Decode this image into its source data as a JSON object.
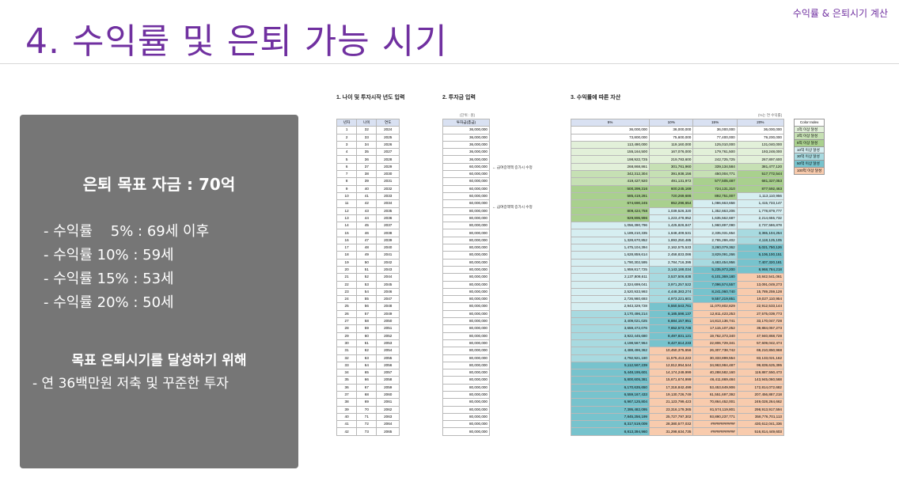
{
  "corner_label": "수익률 & 은퇴시기 계산",
  "title": "4. 수익률 및 은퇴 가능 시기",
  "card": {
    "goal": "은퇴 목표 자금 : 70억",
    "rates": [
      "- 수익률    5% : 69세 이후",
      "- 수익률 10% : 59세",
      "- 수익률 15% : 53세",
      "- 수익률 20% : 50세"
    ],
    "strategy_title": "목표 은퇴시기를 달성하기 위해",
    "strategy_detail": "- 연 36백만원 저축 및 꾸준한 투자"
  },
  "sheet": {
    "section1": "1. 나이 및 투자시작 년도 입력",
    "section2": "2. 투자금 입력",
    "section3": "3. 수익률에 따른 자산",
    "unit_label": "(단위 : 원)",
    "rate_label": "(%는 연 수익률)",
    "headers1": [
      "년차",
      "나이",
      "연도"
    ],
    "header2": "투자금(총금)",
    "headers3": [
      "5%",
      "10%",
      "15%",
      "20%"
    ],
    "note1": "← 급여증액액 증가시 수정",
    "note2": "← 급여증액액 증가시 수정",
    "rows": [
      [
        "1",
        "32",
        "2024",
        "36,000,000",
        "36,000,000",
        "36,000,000",
        "36,000,000",
        "36,000,000"
      ],
      [
        "2",
        "33",
        "2025",
        "36,000,000",
        "73,800,000",
        "75,600,000",
        "77,400,000",
        "79,200,000"
      ],
      [
        "3",
        "34",
        "2026",
        "36,000,000",
        "113,490,000",
        "119,160,000",
        "125,010,000",
        "131,040,000"
      ],
      [
        "4",
        "35",
        "2027",
        "36,000,000",
        "155,164,500",
        "167,076,000",
        "179,761,500",
        "193,248,000"
      ],
      [
        "5",
        "36",
        "2028",
        "36,000,000",
        "198,922,725",
        "219,783,600",
        "242,725,725",
        "267,897,600"
      ],
      [
        "6",
        "37",
        "2029",
        "60,000,000",
        "268,868,861",
        "301,761,960",
        "339,134,584",
        "381,477,120"
      ],
      [
        "7",
        "38",
        "2030",
        "60,000,000",
        "342,312,304",
        "391,938,156",
        "450,004,771",
        "517,772,544"
      ],
      [
        "8",
        "39",
        "2031",
        "60,000,000",
        "419,427,920",
        "491,131,972",
        "577,505,487",
        "681,327,053"
      ],
      [
        "9",
        "40",
        "2032",
        "60,000,000",
        "500,399,316",
        "600,245,169",
        "724,131,310",
        "877,592,463"
      ],
      [
        "10",
        "41",
        "2033",
        "60,000,000",
        "585,419,281",
        "720,269,686",
        "892,751,007",
        "1,113,110,956"
      ],
      [
        "11",
        "42",
        "2034",
        "60,000,000",
        "674,690,245",
        "852,296,654",
        "1,086,663,658",
        "1,415,733,147"
      ],
      [
        "12",
        "43",
        "2035",
        "80,000,000",
        "809,424,758",
        "1,039,526,320",
        "1,352,663,206",
        "1,778,879,777"
      ],
      [
        "13",
        "44",
        "2036",
        "80,000,000",
        "929,895,996",
        "1,223,478,952",
        "1,635,562,687",
        "2,214,655,732"
      ],
      [
        "14",
        "45",
        "2037",
        "80,000,000",
        "1,056,390,796",
        "1,425,826,847",
        "1,960,897,090",
        "2,737,586,878"
      ],
      [
        "15",
        "46",
        "2038",
        "80,000,000",
        "1,189,210,335",
        "1,648,409,531",
        "2,335,031,654",
        "3,365,104,254"
      ],
      [
        "16",
        "47",
        "2039",
        "80,000,000",
        "1,328,670,852",
        "1,893,250,485",
        "2,765,286,402",
        "4,118,125,105"
      ],
      [
        "17",
        "48",
        "2040",
        "80,000,000",
        "1,475,104,394",
        "2,162,575,533",
        "3,260,079,362",
        "5,021,750,126"
      ],
      [
        "18",
        "49",
        "2041",
        "80,000,000",
        "1,628,859,614",
        "2,458,833,086",
        "3,829,091,266",
        "6,106,100,151"
      ],
      [
        "19",
        "50",
        "2042",
        "80,000,000",
        "1,790,302,595",
        "2,784,716,395",
        "4,483,454,956",
        "7,407,320,181"
      ],
      [
        "20",
        "51",
        "2043",
        "80,000,000",
        "1,959,817,725",
        "3,143,188,034",
        "5,235,973,200",
        "8,968,784,218"
      ],
      [
        "21",
        "52",
        "2044",
        "80,000,000",
        "2,137,808,611",
        "3,537,506,838",
        "6,101,369,180",
        "10,842,541,061"
      ],
      [
        "22",
        "53",
        "2045",
        "80,000,000",
        "2,324,699,041",
        "3,971,257,522",
        "7,096,574,557",
        "13,091,049,273"
      ],
      [
        "23",
        "54",
        "2046",
        "80,000,000",
        "2,520,933,993",
        "4,448,383,274",
        "8,241,060,740",
        "15,789,259,128"
      ],
      [
        "24",
        "55",
        "2047",
        "80,000,000",
        "2,726,980,693",
        "4,973,221,601",
        "9,557,219,851",
        "19,027,110,954"
      ],
      [
        "25",
        "56",
        "2048",
        "80,000,000",
        "2,943,329,728",
        "5,550,543,761",
        "11,070,802,829",
        "22,912,533,144"
      ],
      [
        "26",
        "57",
        "2049",
        "80,000,000",
        "3,170,496,214",
        "6,185,598,137",
        "12,811,423,253",
        "27,575,039,773"
      ],
      [
        "27",
        "58",
        "2050",
        "80,000,000",
        "3,409,021,025",
        "6,884,157,951",
        "14,813,136,741",
        "33,170,047,728"
      ],
      [
        "28",
        "59",
        "2051",
        "80,000,000",
        "3,659,472,076",
        "7,652,573,746",
        "17,115,107,252",
        "39,884,057,273"
      ],
      [
        "29",
        "60",
        "2052",
        "80,000,000",
        "3,922,445,680",
        "8,497,831,121",
        "19,762,373,340",
        "47,940,868,728"
      ],
      [
        "30",
        "61",
        "2053",
        "80,000,000",
        "4,198,567,964",
        "9,427,614,233",
        "22,806,729,341",
        "57,609,042,474"
      ],
      [
        "31",
        "62",
        "2054",
        "80,000,000",
        "4,488,496,362",
        "10,450,375,656",
        "26,307,738,742",
        "69,210,850,968"
      ],
      [
        "32",
        "63",
        "2055",
        "80,000,000",
        "4,792,921,180",
        "11,575,413,222",
        "30,333,899,554",
        "83,133,021,162"
      ],
      [
        "33",
        "64",
        "2056",
        "80,000,000",
        "5,112,567,239",
        "12,812,954,544",
        "34,963,984,487",
        "99,839,625,395"
      ],
      [
        "34",
        "65",
        "2057",
        "80,000,000",
        "5,448,195,601",
        "14,174,249,999",
        "40,288,582,160",
        "119,887,550,473"
      ],
      [
        "35",
        "66",
        "2058",
        "80,000,000",
        "5,800,605,381",
        "15,671,674,999",
        "46,411,869,484",
        "143,945,060,568"
      ],
      [
        "36",
        "67",
        "2059",
        "80,000,000",
        "6,170,635,650",
        "17,318,842,499",
        "53,453,649,906",
        "172,814,072,682"
      ],
      [
        "37",
        "68",
        "2060",
        "80,000,000",
        "6,559,167,433",
        "19,130,726,749",
        "61,551,697,392",
        "207,456,887,218"
      ],
      [
        "38",
        "69",
        "2061",
        "80,000,000",
        "6,967,125,804",
        "21,123,799,423",
        "70,864,452,001",
        "249,028,264,662"
      ],
      [
        "39",
        "70",
        "2062",
        "80,000,000",
        "7,395,482,095",
        "23,316,179,365",
        "81,574,119,801",
        "298,913,917,594"
      ],
      [
        "40",
        "71",
        "2063",
        "80,000,000",
        "7,845,256,199",
        "25,727,797,302",
        "93,890,237,771",
        "358,776,701,113"
      ],
      [
        "41",
        "72",
        "2064",
        "80,000,000",
        "8,317,519,009",
        "28,380,577,032",
        "############",
        "430,612,041,336"
      ],
      [
        "42",
        "73",
        "2065",
        "80,000,000",
        "8,813,394,960",
        "31,298,634,735",
        "############",
        "516,814,449,603"
      ]
    ],
    "legend": {
      "header": "Color Index",
      "items": [
        {
          "label": "1억 이상 달성",
          "color": "#e2f0d9"
        },
        {
          "label": "3억 이상 달성",
          "color": "#c6e0b4"
        },
        {
          "label": "5억 이상 달성",
          "color": "#a9d08e"
        },
        {
          "label": "10억 이상 달성",
          "color": "#d6eef1"
        },
        {
          "label": "30억 이상 달성",
          "color": "#a8dae0"
        },
        {
          "label": "50억 이상 달성",
          "color": "#77c3cd"
        },
        {
          "label": "100억 이상 달성",
          "color": "#f8cbad"
        }
      ]
    }
  }
}
